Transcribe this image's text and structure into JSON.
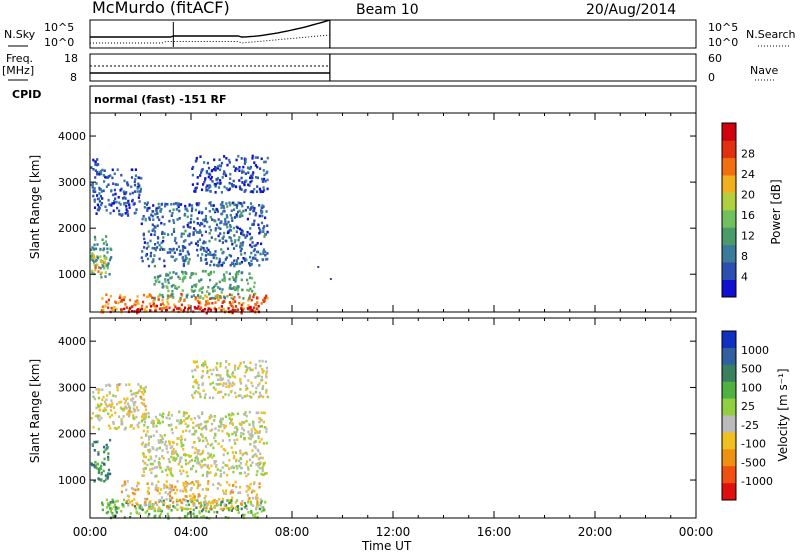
{
  "header": {
    "station": "McMurdo (fitACF)",
    "beam": "Beam 10",
    "date": "20/Aug/2014"
  },
  "panels": {
    "nsky_label": "N.Sky",
    "nsearch_label": "N.Search",
    "nsky_ticks": [
      "10^5",
      "10^0"
    ],
    "freq_label_line1": "Freq.",
    "freq_label_line2": "[MHz]",
    "freq_ticks": [
      "18",
      "8"
    ],
    "nave_label": "Nave",
    "nave_ticks": [
      "60",
      "0"
    ],
    "cpid_label": "CPID",
    "cpid_value": "normal (fast) -151 RF"
  },
  "colors": {
    "power": [
      "#1010d0",
      "#2a4fb0",
      "#3a7a9a",
      "#4a9a6a",
      "#70c060",
      "#b0d040",
      "#f0b020",
      "#f07010",
      "#e03010",
      "#d00010"
    ],
    "velocity": [
      "#1030c0",
      "#3060a0",
      "#3a8060",
      "#50b040",
      "#90d040",
      "#bbbbbb",
      "#f0c020",
      "#f09010",
      "#f05010",
      "#e01010"
    ]
  },
  "chart_data": [
    {
      "type": "heatmap",
      "name": "power",
      "x_axis": {
        "label": "",
        "range_hours": [
          0,
          24
        ],
        "ticks": [
          "00:00",
          "04:00",
          "08:00",
          "12:00",
          "16:00",
          "20:00",
          "00:00"
        ]
      },
      "ylabel": "Slant Range [km]",
      "ylim": [
        180,
        4500
      ],
      "yticks": [
        "1000",
        "2000",
        "3000",
        "4000"
      ],
      "colorbar": {
        "label": "Power [dB]",
        "ticks": [
          "4",
          "8",
          "12",
          "16",
          "20",
          "24",
          "28"
        ],
        "range": [
          0,
          30
        ]
      },
      "blobs": [
        {
          "t": 0.3,
          "r": 1400,
          "dt": 0.5,
          "dr": 450,
          "v": 10
        },
        {
          "t": 0.25,
          "r": 1250,
          "dt": 0.35,
          "dr": 200,
          "v": 18
        },
        {
          "t": 3.7,
          "r": 400,
          "dt": 3.3,
          "dr": 200,
          "v": 22
        },
        {
          "t": 4.0,
          "r": 260,
          "dt": 2.8,
          "dr": 80,
          "v": 28
        },
        {
          "t": 4.5,
          "r": 800,
          "dt": 2.0,
          "dr": 300,
          "v": 11
        },
        {
          "t": 4.5,
          "r": 1900,
          "dt": 2.5,
          "dr": 700,
          "v": 6
        },
        {
          "t": 1.0,
          "r": 2800,
          "dt": 1.0,
          "dr": 500,
          "v": 5
        },
        {
          "t": 0.2,
          "r": 3400,
          "dt": 0.2,
          "dr": 150,
          "v": 4
        },
        {
          "t": 5.5,
          "r": 3200,
          "dt": 1.5,
          "dr": 400,
          "v": 4
        }
      ]
    },
    {
      "type": "heatmap",
      "name": "velocity",
      "x_axis": {
        "label": "Time UT",
        "range_hours": [
          0,
          24
        ],
        "ticks": [
          "00:00",
          "04:00",
          "08:00",
          "12:00",
          "16:00",
          "20:00",
          "00:00"
        ]
      },
      "ylabel": "Slant Range [km]",
      "ylim": [
        180,
        4500
      ],
      "yticks": [
        "1000",
        "2000",
        "3000",
        "4000"
      ],
      "colorbar": {
        "label": "Velocity [m s⁻¹]",
        "ticks": [
          "1000",
          "500",
          "100",
          "25",
          "-25",
          "-100",
          "-500",
          "-1000"
        ],
        "range": [
          -1200,
          1200
        ]
      },
      "blobs": [
        {
          "t": 0.3,
          "r": 1450,
          "dt": 0.5,
          "dr": 450,
          "v": 600
        },
        {
          "t": 3.7,
          "r": 400,
          "dt": 3.3,
          "dr": 200,
          "v": 300
        },
        {
          "t": 4.0,
          "r": 700,
          "dt": 2.8,
          "dr": 300,
          "v": -300
        },
        {
          "t": 4.5,
          "r": 1800,
          "dt": 2.5,
          "dr": 700,
          "v": -80
        },
        {
          "t": 1.0,
          "r": 2600,
          "dt": 1.2,
          "dr": 500,
          "v": -200
        },
        {
          "t": 5.5,
          "r": 3200,
          "dt": 1.5,
          "dr": 400,
          "v": -150
        }
      ]
    }
  ]
}
